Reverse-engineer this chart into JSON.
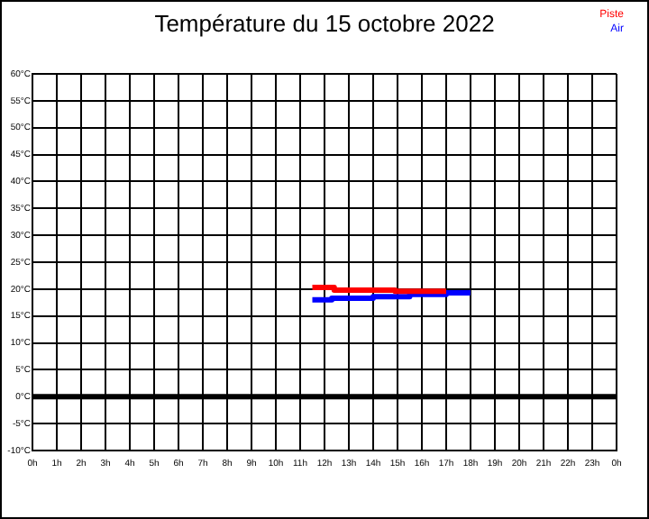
{
  "chart_data": {
    "type": "step",
    "title": "Température du 15 octobre 2022",
    "series": [
      {
        "name": "Piste",
        "color": "#ff0000",
        "x": [
          "2022-10-15T11:30",
          "2022-10-15T12:24",
          "2022-10-15T14:54",
          "2022-10-15T17:00"
        ],
        "values": [
          20.3,
          19.8,
          19.6,
          19.6
        ]
      },
      {
        "name": "Air",
        "color": "#0000ff",
        "x": [
          "2022-10-15T11:30",
          "2022-10-15T12:18",
          "2022-10-15T14:00",
          "2022-10-15T15:30",
          "2022-10-15T17:00",
          "2022-10-15T18:00"
        ],
        "values": [
          18.0,
          18.3,
          18.6,
          19.0,
          19.3,
          19.3
        ]
      }
    ],
    "xlim": [
      "2022-10-15T00:00",
      "2022-10-16T00:00"
    ],
    "xticks": [
      {
        "value": "2022-10-15T00:00",
        "label": "0h"
      },
      {
        "value": "2022-10-15T01:00",
        "label": "1h"
      },
      {
        "value": "2022-10-15T02:00",
        "label": "2h"
      },
      {
        "value": "2022-10-15T03:00",
        "label": "3h"
      },
      {
        "value": "2022-10-15T04:00",
        "label": "4h"
      },
      {
        "value": "2022-10-15T05:00",
        "label": "5h"
      },
      {
        "value": "2022-10-15T06:00",
        "label": "6h"
      },
      {
        "value": "2022-10-15T07:00",
        "label": "7h"
      },
      {
        "value": "2022-10-15T08:00",
        "label": "8h"
      },
      {
        "value": "2022-10-15T09:00",
        "label": "9h"
      },
      {
        "value": "2022-10-15T10:00",
        "label": "10h"
      },
      {
        "value": "2022-10-15T11:00",
        "label": "11h"
      },
      {
        "value": "2022-10-15T12:00",
        "label": "12h"
      },
      {
        "value": "2022-10-15T13:00",
        "label": "13h"
      },
      {
        "value": "2022-10-15T14:00",
        "label": "14h"
      },
      {
        "value": "2022-10-15T15:00",
        "label": "15h"
      },
      {
        "value": "2022-10-15T16:00",
        "label": "16h"
      },
      {
        "value": "2022-10-15T17:00",
        "label": "17h"
      },
      {
        "value": "2022-10-15T18:00",
        "label": "18h"
      },
      {
        "value": "2022-10-15T19:00",
        "label": "19h"
      },
      {
        "value": "2022-10-15T20:00",
        "label": "20h"
      },
      {
        "value": "2022-10-15T21:00",
        "label": "21h"
      },
      {
        "value": "2022-10-15T22:00",
        "label": "22h"
      },
      {
        "value": "2022-10-15T23:00",
        "label": "23h"
      },
      {
        "value": "2022-10-16T00:00",
        "label": "0h"
      }
    ],
    "ylim": [
      -10,
      60
    ],
    "yticks": [
      {
        "value": -10,
        "label": "-10°C"
      },
      {
        "value": -5,
        "label": "-5°C"
      },
      {
        "value": 0,
        "label": "0°C"
      },
      {
        "value": 5,
        "label": "5°C"
      },
      {
        "value": 10,
        "label": "10°C"
      },
      {
        "value": 15,
        "label": "15°C"
      },
      {
        "value": 20,
        "label": "20°C"
      },
      {
        "value": 25,
        "label": "25°C"
      },
      {
        "value": 30,
        "label": "30°C"
      },
      {
        "value": 35,
        "label": "35°C"
      },
      {
        "value": 40,
        "label": "40°C"
      },
      {
        "value": 45,
        "label": "45°C"
      },
      {
        "value": 50,
        "label": "50°C"
      },
      {
        "value": 55,
        "label": "55°C"
      },
      {
        "value": 60,
        "label": "60°C"
      }
    ],
    "ref_lines": [
      {
        "axis": "y",
        "value": 0,
        "color": "#000000"
      }
    ],
    "grid": true,
    "legend": "top right",
    "marker": "none",
    "line_style": "solid"
  }
}
